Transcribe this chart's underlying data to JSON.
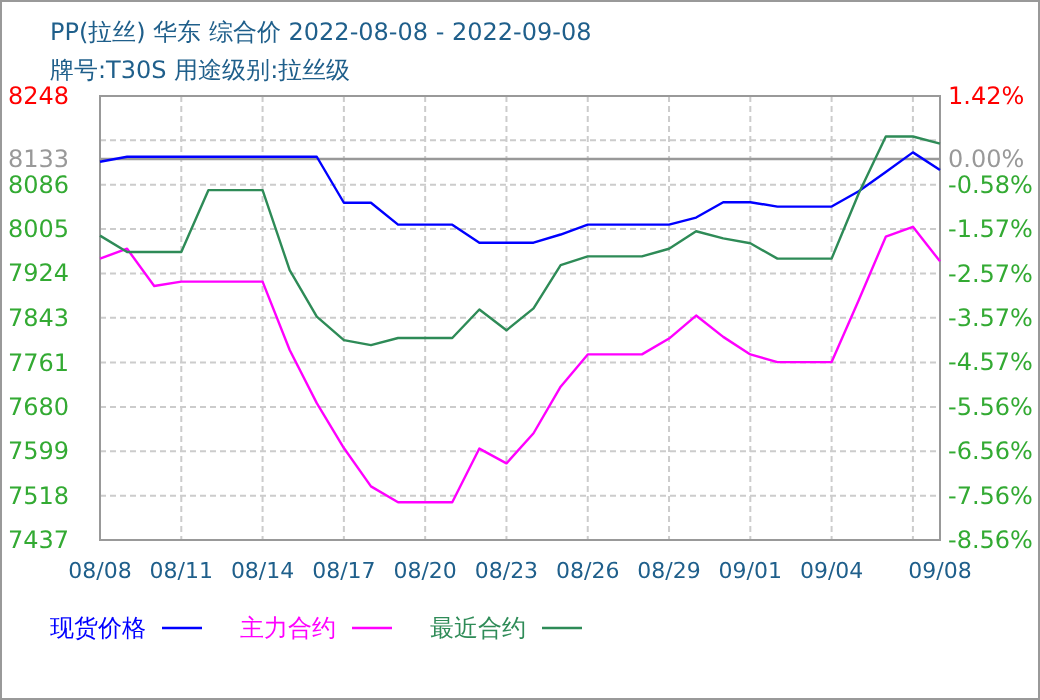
{
  "chart_data": {
    "type": "line",
    "title": "PP(拉丝) 华东 综合价 2022-08-08 - 2022-09-08",
    "subtitle": "牌号:T30S 用途级别:拉丝级",
    "x": [
      "2022-08-08",
      "2022-08-09",
      "2022-08-10",
      "2022-08-11",
      "2022-08-12",
      "2022-08-13",
      "2022-08-14",
      "2022-08-15",
      "2022-08-16",
      "2022-08-17",
      "2022-08-18",
      "2022-08-19",
      "2022-08-20",
      "2022-08-21",
      "2022-08-22",
      "2022-08-23",
      "2022-08-24",
      "2022-08-25",
      "2022-08-26",
      "2022-08-27",
      "2022-08-28",
      "2022-08-29",
      "2022-08-30",
      "2022-08-31",
      "2022-09-01",
      "2022-09-02",
      "2022-09-03",
      "2022-09-04",
      "2022-09-05",
      "2022-09-06",
      "2022-09-07",
      "2022-09-08"
    ],
    "series": [
      {
        "name": "现货价格",
        "color": "#0000ff",
        "values": [
          8128,
          8137,
          8137,
          8137,
          8137,
          8137,
          8137,
          8137,
          8137,
          8053,
          8053,
          8013,
          8013,
          8013,
          7980,
          7980,
          7980,
          7995,
          8013,
          8013,
          8013,
          8013,
          8026,
          8054,
          8054,
          8046,
          8046,
          8046,
          8074,
          8109,
          8145,
          8113
        ]
      },
      {
        "name": "主力合约",
        "color": "#ff00ff",
        "values": [
          7951,
          7969,
          7901,
          7909,
          7909,
          7909,
          7909,
          7784,
          7687,
          7605,
          7535,
          7506,
          7506,
          7506,
          7604,
          7577,
          7632,
          7717,
          7776,
          7776,
          7776,
          7805,
          7847,
          7808,
          7776,
          7762,
          7762,
          7762,
          7875,
          7991,
          8009,
          7946
        ]
      },
      {
        "name": "最近合约",
        "color": "#2e8b57",
        "values": [
          7993,
          7963,
          7963,
          7963,
          8076,
          8076,
          8076,
          7930,
          7845,
          7802,
          7793,
          7806,
          7806,
          7806,
          7858,
          7820,
          7860,
          7939,
          7955,
          7955,
          7955,
          7969,
          8001,
          7988,
          7979,
          7951,
          7951,
          7951,
          8070,
          8174,
          8174,
          8161
        ]
      }
    ],
    "xlim": [
      "2022-08-08",
      "2022-09-08"
    ],
    "xticks": [
      {
        "value": "2022-08-08",
        "label": "08/08"
      },
      {
        "value": "2022-08-11",
        "label": "08/11"
      },
      {
        "value": "2022-08-14",
        "label": "08/14"
      },
      {
        "value": "2022-08-17",
        "label": "08/17"
      },
      {
        "value": "2022-08-20",
        "label": "08/20"
      },
      {
        "value": "2022-08-23",
        "label": "08/23"
      },
      {
        "value": "2022-08-26",
        "label": "08/26"
      },
      {
        "value": "2022-08-29",
        "label": "08/29"
      },
      {
        "value": "2022-09-01",
        "label": "09/01"
      },
      {
        "value": "2022-09-04",
        "label": "09/04"
      },
      {
        "value": "2022-09-07",
        "label": null
      },
      {
        "value": "2022-09-08",
        "label": "09/08"
      }
    ],
    "ylim": [
      7437,
      8248
    ],
    "yticks": [
      7437,
      7518,
      7599,
      7680,
      7761,
      7843,
      7924,
      8005,
      8086,
      8133,
      {
        "value": 8167,
        "label": null
      },
      8248
    ],
    "y2lim": [
      -8.56,
      1.42
    ],
    "y2ticks": [
      {
        "value": -8.56,
        "label": "-8.56%"
      },
      {
        "value": -7.56,
        "label": "-7.56%"
      },
      {
        "value": -6.56,
        "label": "-6.56%"
      },
      {
        "value": -5.56,
        "label": "-5.56%"
      },
      {
        "value": -4.57,
        "label": "-4.57%"
      },
      {
        "value": -3.57,
        "label": "-3.57%"
      },
      {
        "value": -2.57,
        "label": "-2.57%"
      },
      {
        "value": -1.57,
        "label": "-1.57%"
      },
      {
        "value": -0.58,
        "label": "-0.58%"
      },
      {
        "value": 0,
        "label": "0.00%"
      },
      {
        "value": 1.42,
        "label": "1.42%"
      }
    ],
    "ref_lines": [
      {
        "axis": "y",
        "value": 8133,
        "color": "#999999"
      }
    ],
    "grid": true,
    "legend": "bottom"
  }
}
